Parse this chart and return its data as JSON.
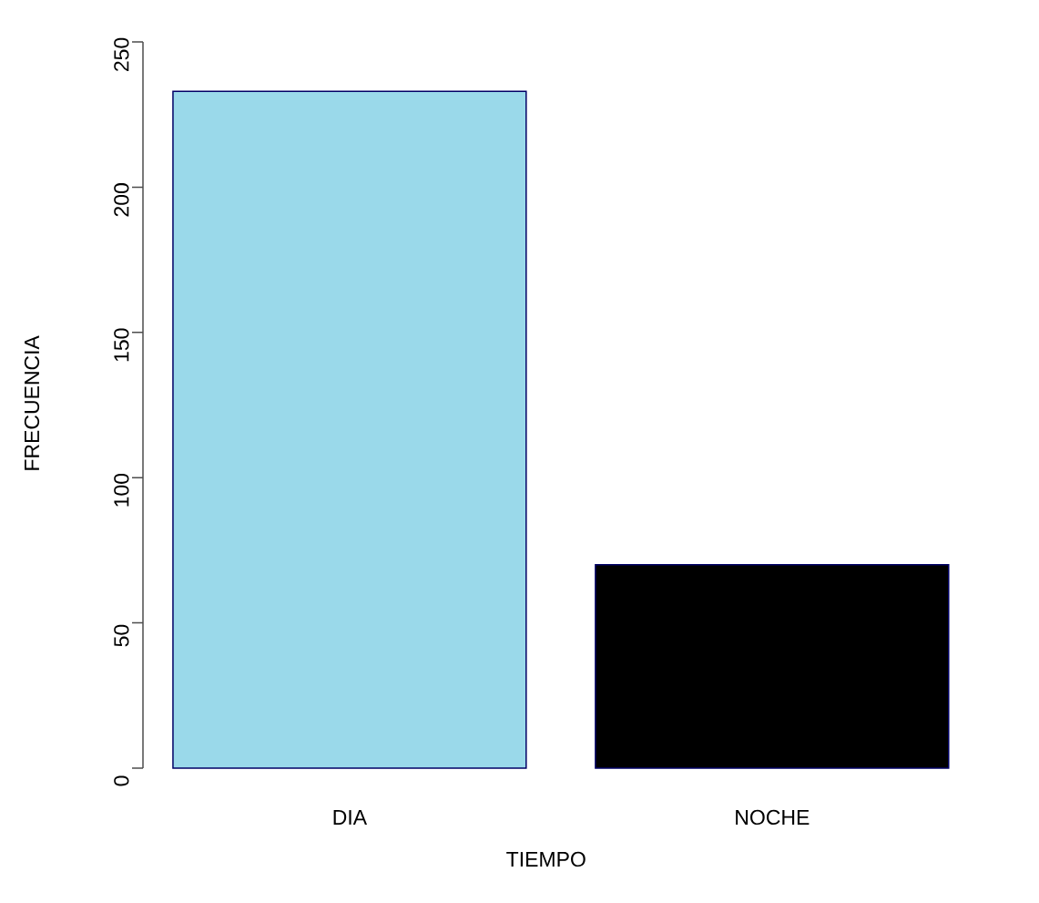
{
  "chart_data": {
    "type": "bar",
    "xlabel": "TIEMPO",
    "ylabel": "FRECUENCIA",
    "categories": [
      "DIA",
      "NOCHE"
    ],
    "values": [
      233,
      70
    ],
    "colors": [
      "#9ad9ea",
      "#000000"
    ],
    "ylim": [
      0,
      250
    ],
    "yticks": [
      0,
      50,
      100,
      150,
      200,
      250
    ]
  }
}
